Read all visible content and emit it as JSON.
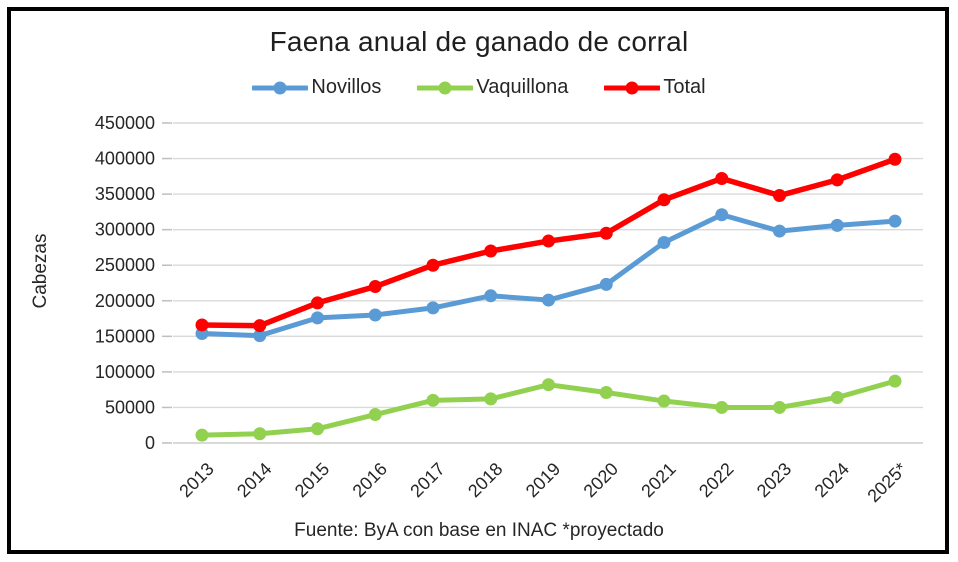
{
  "chart_data": {
    "type": "line",
    "title": "Faena anual de ganado de corral",
    "ylabel": "Cabezas",
    "xlabel": "",
    "footer": "Fuente: ByA con base en INAC *proyectado",
    "categories": [
      "2013",
      "2014",
      "2015",
      "2016",
      "2017",
      "2018",
      "2019",
      "2020",
      "2021",
      "2022",
      "2023",
      "2024",
      "2025*"
    ],
    "series": [
      {
        "name": "Novillos",
        "color": "#5B9BD5",
        "values": [
          154000,
          151000,
          176000,
          180000,
          190000,
          207000,
          201000,
          223000,
          282000,
          321000,
          298000,
          306000,
          312000
        ]
      },
      {
        "name": "Vaquillona",
        "color": "#92D050",
        "values": [
          11000,
          13000,
          20000,
          40000,
          60000,
          62000,
          82000,
          71000,
          59000,
          50000,
          50000,
          64000,
          87000
        ]
      },
      {
        "name": "Total",
        "color": "#FF0000",
        "values": [
          166000,
          165000,
          197000,
          220000,
          250000,
          270000,
          284000,
          295000,
          342000,
          372000,
          348000,
          370000,
          399000
        ]
      }
    ],
    "ylim": [
      0,
      450000
    ],
    "ytick_step": 50000,
    "grid": true,
    "legend_position": "top",
    "marker": "circle",
    "colors": {
      "gridline": "#D9D9D9",
      "axis_tick": "#BFBFBF",
      "text": "#262626",
      "border": "#000000",
      "background": "#FFFFFF"
    }
  }
}
